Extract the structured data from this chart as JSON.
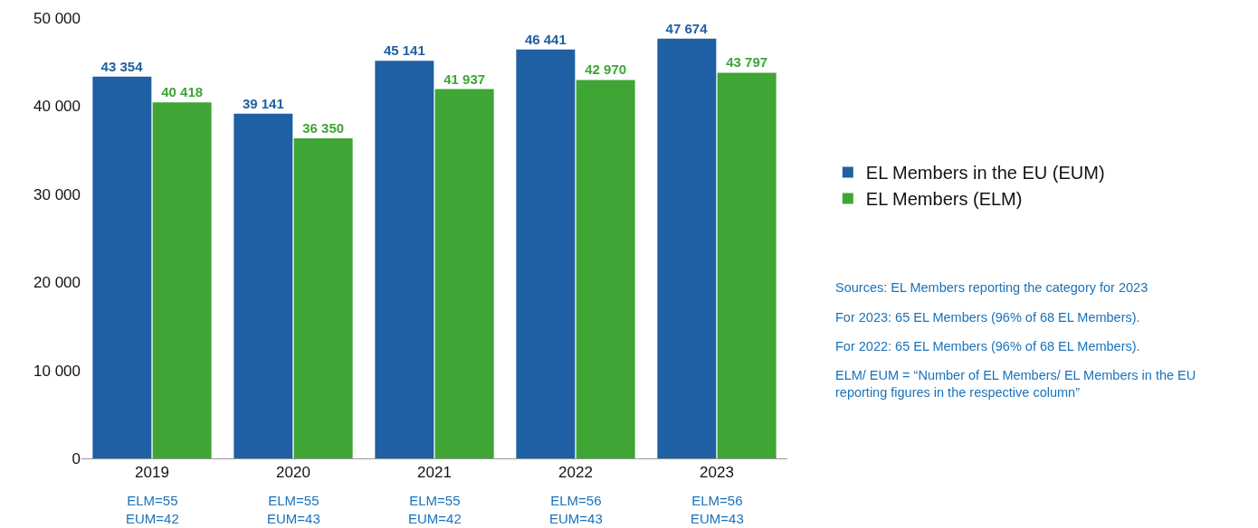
{
  "chart_data": {
    "type": "bar",
    "categories": [
      "2019",
      "2020",
      "2021",
      "2022",
      "2023"
    ],
    "series": [
      {
        "name": "EL Members in the EU (EUM)",
        "color": "#1f5fa3",
        "values": [
          43354,
          39141,
          45141,
          46441,
          47674
        ],
        "value_labels": [
          "43 354",
          "39 141",
          "45 141",
          "46 441",
          "47 674"
        ]
      },
      {
        "name": "EL Members (ELM)",
        "color": "#3fa535",
        "values": [
          40418,
          36350,
          41937,
          42970,
          43797
        ],
        "value_labels": [
          "40 418",
          "36 350",
          "41 937",
          "42 970",
          "43 797"
        ]
      }
    ],
    "ylim": [
      0,
      50000
    ],
    "yticks": [
      {
        "value": 0,
        "label": "0"
      },
      {
        "value": 10000,
        "label": "10 000"
      },
      {
        "value": 20000,
        "label": "20 000"
      },
      {
        "value": 30000,
        "label": "30 000"
      },
      {
        "value": 40000,
        "label": "40 000"
      },
      {
        "value": 50000,
        "label": "50 000"
      }
    ],
    "grid": false,
    "legend": "right",
    "annotations": [
      "ELM=55\nEUM=42",
      "ELM=55\nEUM=43",
      "ELM=55\nEUM=42",
      "ELM=56\nEUM=43",
      "ELM=56\nEUM=43",
      "Sources: EL Members reporting the category for 2023",
      "For 2023: 65 EL Members (96% of 68 EL Members).",
      "For 2022: 65 EL Members (96% of 68 EL Members).",
      "ELM/ EUM = “Number of EL Members/ EL Members in the EU reporting figures in the respective column”"
    ]
  }
}
